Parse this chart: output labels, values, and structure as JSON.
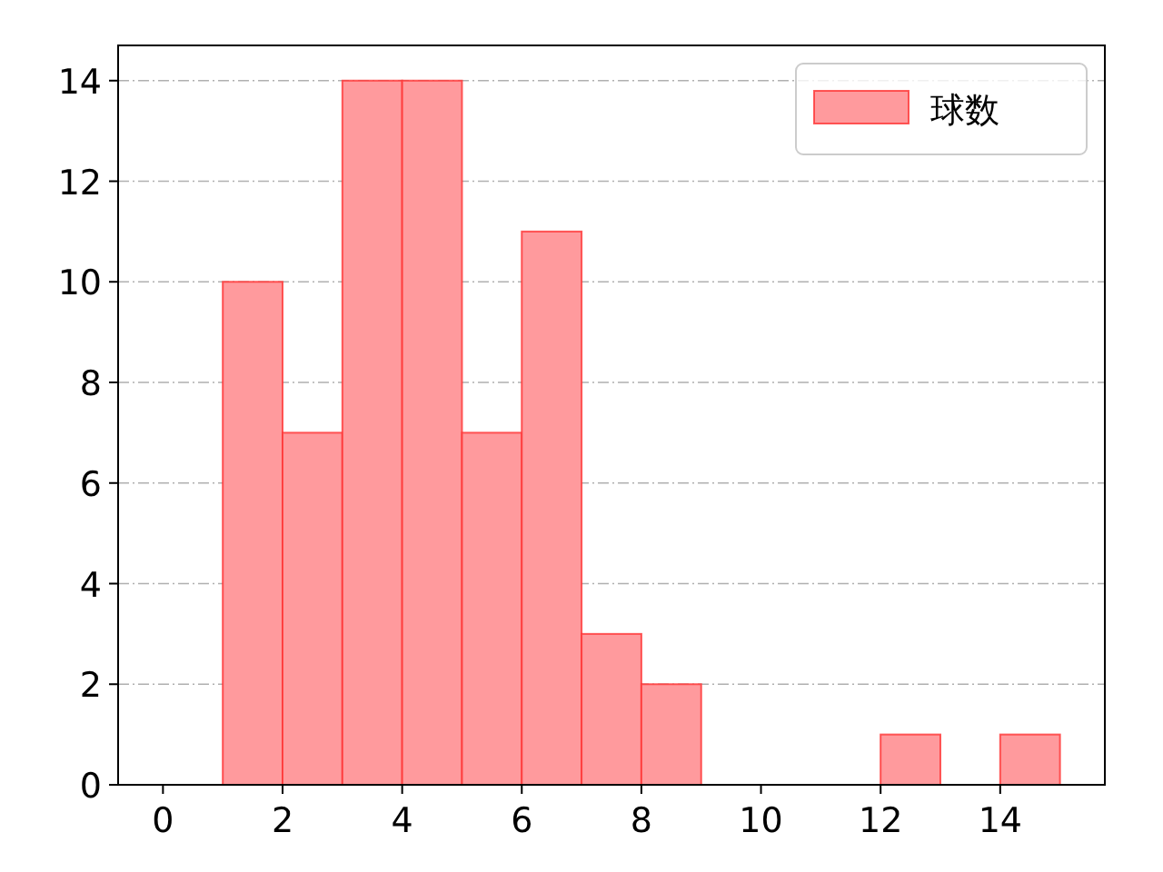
{
  "chart_data": {
    "type": "histogram",
    "bins": [
      0,
      1,
      2,
      3,
      4,
      5,
      6,
      7,
      8,
      9,
      10,
      11,
      12,
      13,
      14,
      15
    ],
    "series": [
      {
        "name": "球数",
        "color": "#ff9a9d",
        "values": [
          0,
          10,
          7,
          14,
          14,
          7,
          11,
          3,
          2,
          0,
          0,
          0,
          1,
          0,
          1
        ]
      }
    ],
    "xlim": [
      -0.75,
      15.75
    ],
    "xticks": [
      0,
      2,
      4,
      6,
      8,
      10,
      12,
      14
    ],
    "ylim": [
      0,
      14.7
    ],
    "yticks": [
      0,
      2,
      4,
      6,
      8,
      10,
      12,
      14
    ],
    "grid": "y",
    "legend": "top right"
  }
}
